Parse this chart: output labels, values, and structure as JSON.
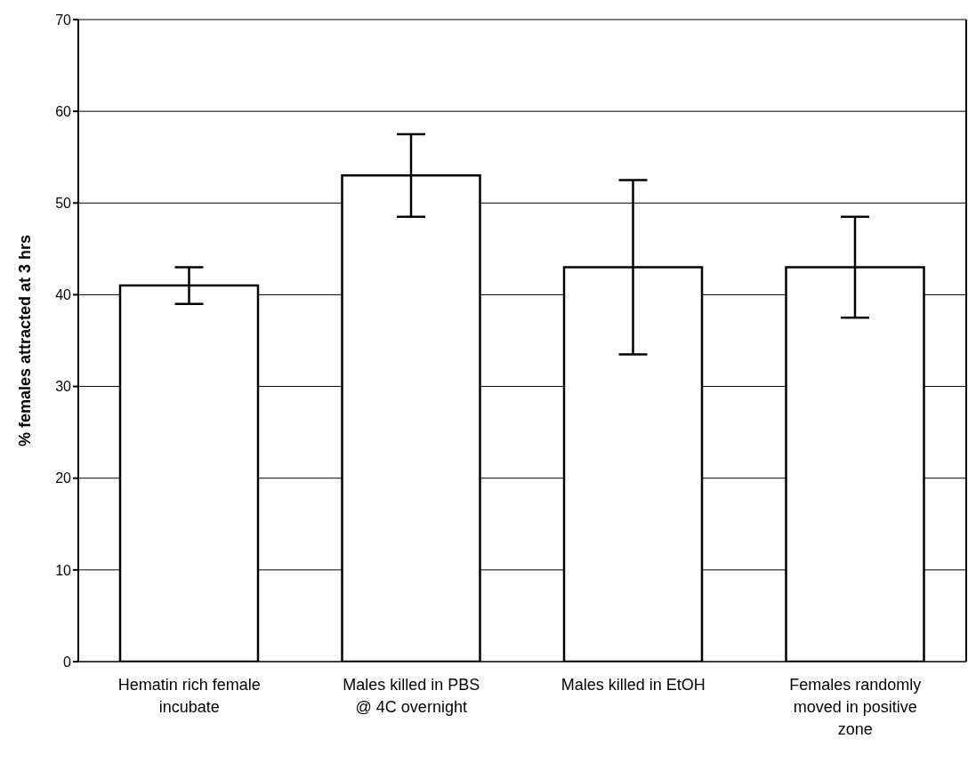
{
  "chart_data": {
    "type": "bar",
    "ylabel": "% females attracted at 3 hrs",
    "categories": [
      "Hematin rich female incubate",
      "Males killed in PBS @ 4C overnight",
      "Males killed in EtOH",
      "Females randomly moved in positive zone"
    ],
    "values": [
      41,
      53,
      43,
      43
    ],
    "errors": [
      2,
      4.5,
      9.5,
      5.5
    ],
    "color": "#ffffff",
    "ylim": [
      0,
      70
    ],
    "yticks": [
      0,
      10,
      20,
      30,
      40,
      50,
      60,
      70
    ],
    "grid": "y",
    "legend": false
  }
}
